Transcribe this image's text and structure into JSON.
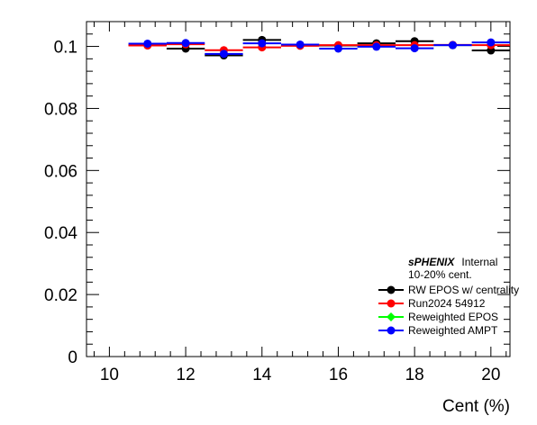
{
  "chart_data": {
    "type": "scatter",
    "title": "",
    "xlabel": "Cent (%)",
    "ylabel": "",
    "xlim": [
      9.4,
      20.5
    ],
    "ylim": [
      0,
      0.108
    ],
    "x_ticks": [
      10,
      12,
      14,
      16,
      18,
      20
    ],
    "x_tick_labels": [
      "10",
      "12",
      "14",
      "16",
      "18",
      "20"
    ],
    "y_ticks": [
      0,
      0.02,
      0.04,
      0.06,
      0.08,
      0.1
    ],
    "y_tick_labels": [
      "0",
      "0.02",
      "0.04",
      "0.06",
      "0.08",
      "0.1"
    ],
    "bin_half_width": 0.5,
    "grid": false,
    "legend_position": "bottom-right",
    "annotation_bold": "sPHENIX",
    "annotation_normal": "Internal",
    "annotation_sub": "10-20% cent.",
    "series": [
      {
        "name": "RW EPOS w/ centrality",
        "color": "#000000",
        "marker": "circle",
        "x": [
          11,
          12,
          13,
          14,
          15,
          16,
          17,
          18,
          19,
          20
        ],
        "values": [
          0.1004,
          0.0993,
          0.0971,
          0.1021,
          0.1003,
          0.1003,
          0.101,
          0.1017,
          0.1004,
          0.0987
        ]
      },
      {
        "name": "Run2024 54912",
        "color": "#ff0000",
        "marker": "circle",
        "x": [
          11,
          12,
          13,
          14,
          15,
          16,
          17,
          18,
          19,
          20
        ],
        "values": [
          0.1003,
          0.1007,
          0.0988,
          0.0997,
          0.1002,
          0.1004,
          0.1004,
          0.1004,
          0.1005,
          0.1004
        ]
      },
      {
        "name": "Reweighted EPOS",
        "color": "#00ff00",
        "marker": "diamond",
        "x": [],
        "values": []
      },
      {
        "name": "Reweighted AMPT",
        "color": "#0000ff",
        "marker": "circle",
        "x": [
          11,
          12,
          13,
          14,
          15,
          16,
          17,
          18,
          19,
          20
        ],
        "values": [
          0.1009,
          0.1011,
          0.0976,
          0.101,
          0.1006,
          0.0993,
          0.0999,
          0.0994,
          0.1004,
          0.1013
        ]
      }
    ]
  }
}
